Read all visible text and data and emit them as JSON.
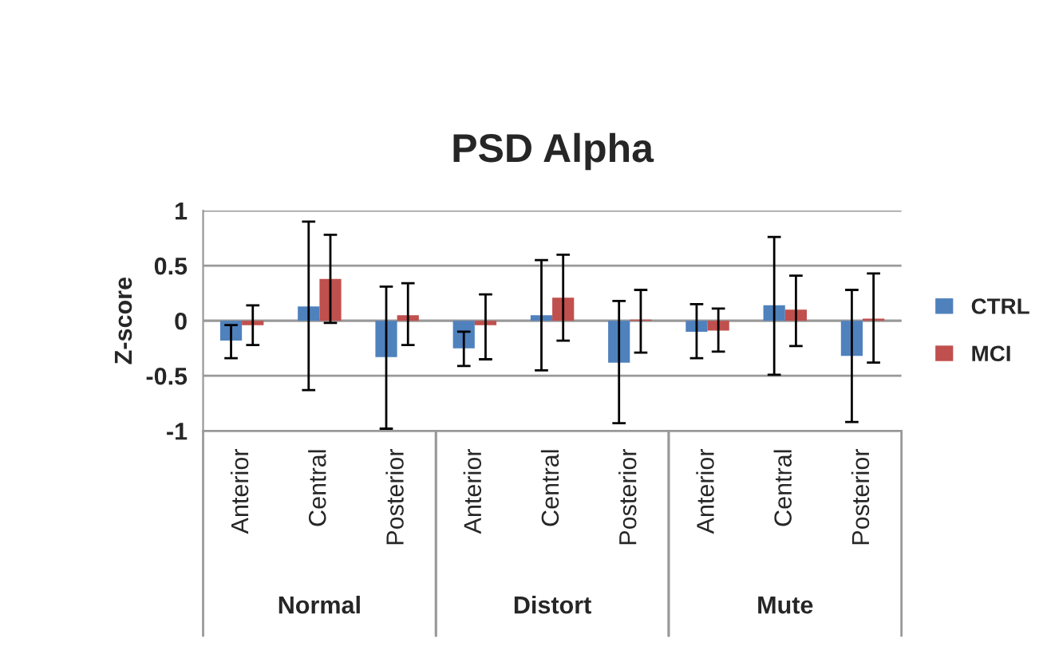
{
  "chart_data": {
    "type": "bar",
    "title": "PSD Alpha",
    "ylabel": "Z-score",
    "categories": [
      "Anterior",
      "Central",
      "Posterior",
      "Anterior",
      "Central",
      "Posterior",
      "Anterior",
      "Central",
      "Posterior"
    ],
    "annotations": [
      "Normal",
      "Distort",
      "Mute"
    ],
    "series": [
      {
        "name": "CTRL",
        "color": "#4f81bd",
        "values": [
          -0.18,
          0.13,
          -0.33,
          -0.25,
          0.05,
          -0.38,
          -0.1,
          0.14,
          -0.32
        ],
        "errors": [
          [
            -0.34,
            -0.04
          ],
          [
            -0.63,
            0.9
          ],
          [
            -0.98,
            0.31
          ],
          [
            -0.41,
            -0.1
          ],
          [
            -0.45,
            0.55
          ],
          [
            -0.93,
            0.18
          ],
          [
            -0.34,
            0.15
          ],
          [
            -0.49,
            0.76
          ],
          [
            -0.92,
            0.28
          ]
        ]
      },
      {
        "name": "MCI",
        "color": "#c0504d",
        "values": [
          -0.04,
          0.38,
          0.05,
          -0.04,
          0.21,
          0.01,
          -0.09,
          0.1,
          0.02
        ],
        "errors": [
          [
            -0.22,
            0.14
          ],
          [
            -0.02,
            0.78
          ],
          [
            -0.22,
            0.34
          ],
          [
            -0.35,
            0.24
          ],
          [
            -0.18,
            0.6
          ],
          [
            -0.29,
            0.28
          ],
          [
            -0.28,
            0.11
          ],
          [
            -0.23,
            0.41
          ],
          [
            -0.38,
            0.43
          ]
        ]
      }
    ],
    "ylim": [
      -1,
      1
    ],
    "yticks": [
      -1,
      -0.5,
      0,
      0.5,
      1
    ],
    "grid": "y",
    "legend": "right"
  }
}
